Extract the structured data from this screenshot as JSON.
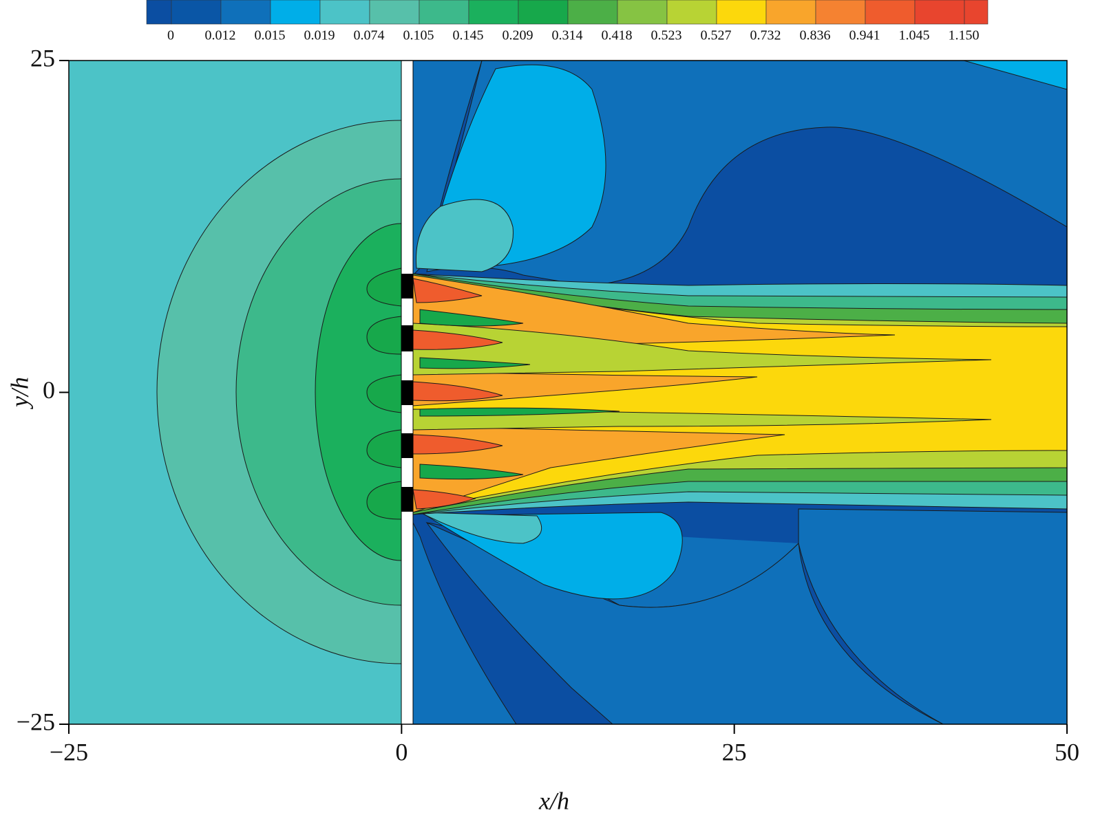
{
  "chart_data": {
    "type": "contour",
    "xlabel": "x/h",
    "ylabel": "y/h",
    "xlim": [
      -25,
      50
    ],
    "ylim": [
      -25,
      25
    ],
    "xticks": [
      {
        "value": -25,
        "label": "−25"
      },
      0,
      25,
      50
    ],
    "yticks": [
      {
        "value": -25,
        "label": "−25"
      },
      0,
      25
    ],
    "colorbar": {
      "levels": [
        0,
        {
          "value": 0.012,
          "label": "0.012"
        },
        {
          "value": 0.015,
          "label": "0.015"
        },
        {
          "value": 0.019,
          "label": "0.019"
        },
        {
          "value": 0.074,
          "label": "0.074"
        },
        {
          "value": 0.105,
          "label": "0.105"
        },
        {
          "value": 0.145,
          "label": "0.145"
        },
        {
          "value": 0.209,
          "label": "0.209"
        },
        {
          "value": 0.314,
          "label": "0.314"
        },
        {
          "value": 0.418,
          "label": "0.418"
        },
        {
          "value": 0.523,
          "label": "0.523"
        },
        {
          "value": 0.527,
          "label": "0.527"
        },
        {
          "value": 0.732,
          "label": "0.732"
        },
        {
          "value": 0.836,
          "label": "0.836"
        },
        {
          "value": 0.941,
          "label": "0.941"
        },
        {
          "value": 1.045,
          "label": "1.045"
        },
        {
          "value": 1.15,
          "label": "1.150"
        }
      ],
      "colors": [
        "#0b4ea2",
        "#0a56a6",
        "#0f70ba",
        "#00aee8",
        "#4cc3c7",
        "#57c0aa",
        "#3db98b",
        "#1bb05d",
        "#17a84b",
        "#4caf47",
        "#86c343",
        "#b8d334",
        "#fcd80c",
        "#f9a52b",
        "#f58231",
        "#ef5c2d",
        "#e8452e",
        "#e8452e"
      ]
    }
  }
}
